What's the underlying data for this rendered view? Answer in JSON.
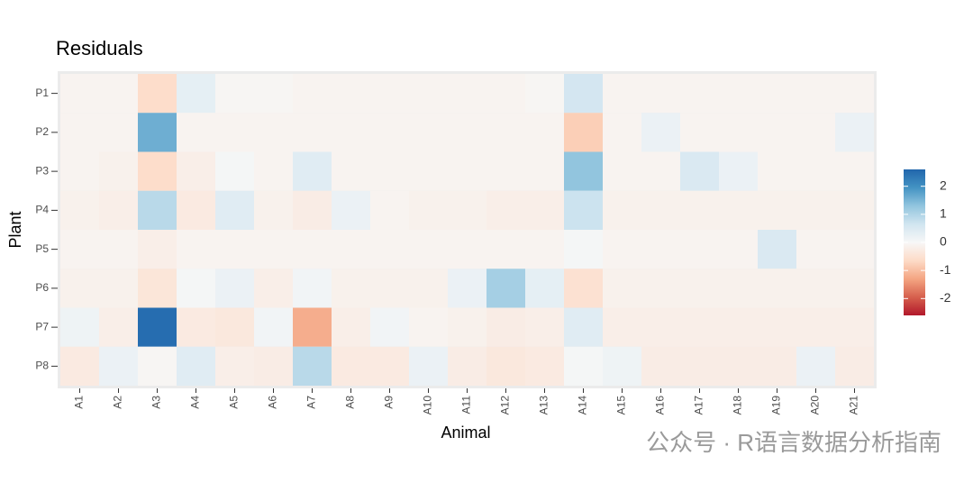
{
  "chart_data": {
    "type": "heatmap",
    "title": "Residuals",
    "x_label": "Animal",
    "y_label": "Plant",
    "watermark": "公众号 · R语言数据分析指南",
    "x": [
      "A1",
      "A2",
      "A3",
      "A4",
      "A5",
      "A6",
      "A7",
      "A8",
      "A9",
      "A10",
      "A11",
      "A12",
      "A13",
      "A14",
      "A15",
      "A16",
      "A17",
      "A18",
      "A19",
      "A20",
      "A21"
    ],
    "y": [
      "P1",
      "P2",
      "P3",
      "P4",
      "P5",
      "P6",
      "P7",
      "P8"
    ],
    "values": [
      [
        -0.1,
        -0.1,
        -0.6,
        0.3,
        -0.05,
        -0.05,
        -0.1,
        -0.1,
        -0.1,
        -0.1,
        -0.1,
        -0.1,
        -0.05,
        0.6,
        -0.1,
        -0.1,
        -0.1,
        -0.1,
        -0.1,
        -0.1,
        -0.1
      ],
      [
        -0.1,
        -0.1,
        1.6,
        -0.1,
        -0.1,
        -0.1,
        -0.1,
        -0.1,
        -0.1,
        -0.1,
        -0.1,
        -0.1,
        -0.1,
        -0.8,
        -0.1,
        0.2,
        -0.1,
        -0.1,
        -0.1,
        -0.1,
        0.2
      ],
      [
        -0.1,
        -0.15,
        -0.6,
        -0.2,
        0.05,
        -0.1,
        0.4,
        -0.1,
        -0.1,
        -0.1,
        -0.1,
        -0.1,
        -0.1,
        1.3,
        -0.1,
        -0.1,
        0.5,
        0.2,
        -0.1,
        -0.1,
        -0.1
      ],
      [
        -0.15,
        -0.2,
        0.9,
        -0.3,
        0.4,
        -0.15,
        -0.25,
        0.2,
        -0.1,
        -0.15,
        -0.15,
        -0.2,
        -0.2,
        0.7,
        -0.15,
        -0.15,
        -0.15,
        -0.15,
        -0.15,
        -0.15,
        -0.15
      ],
      [
        -0.1,
        -0.1,
        -0.2,
        -0.1,
        -0.1,
        -0.1,
        -0.1,
        -0.1,
        -0.1,
        -0.1,
        -0.1,
        -0.1,
        -0.1,
        0.05,
        -0.1,
        -0.1,
        -0.1,
        -0.1,
        0.5,
        -0.1,
        -0.1
      ],
      [
        -0.15,
        -0.15,
        -0.4,
        0.05,
        0.2,
        -0.2,
        0.1,
        -0.15,
        -0.15,
        -0.15,
        0.2,
        1.1,
        0.3,
        -0.5,
        -0.15,
        -0.15,
        -0.15,
        -0.15,
        -0.15,
        -0.15,
        -0.15
      ],
      [
        0.15,
        -0.2,
        2.5,
        -0.3,
        -0.35,
        0.1,
        -1.2,
        -0.2,
        0.1,
        -0.1,
        -0.15,
        -0.25,
        -0.2,
        0.4,
        -0.2,
        -0.2,
        -0.2,
        -0.2,
        -0.2,
        -0.2,
        -0.2
      ],
      [
        -0.3,
        0.2,
        -0.05,
        0.4,
        -0.2,
        -0.25,
        0.9,
        -0.3,
        -0.3,
        0.2,
        -0.25,
        -0.35,
        -0.3,
        0.05,
        0.15,
        -0.25,
        -0.25,
        -0.25,
        -0.25,
        0.2,
        -0.25
      ]
    ],
    "clim": [
      -2.6,
      2.6
    ],
    "cticks": [
      2,
      1,
      0,
      -1,
      -2
    ],
    "colorscale": [
      "#b2182b",
      "#d6604d",
      "#f4a582",
      "#fddbc7",
      "#f7f7f7",
      "#d1e5f0",
      "#92c5de",
      "#4393c3",
      "#2166ac"
    ]
  }
}
